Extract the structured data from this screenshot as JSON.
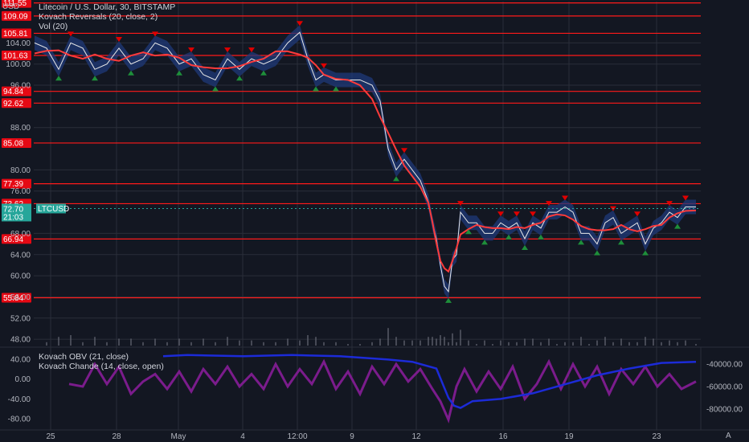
{
  "header": {
    "currency": "USD"
  },
  "legends": {
    "main": [
      "Litecoin / U.S. Dollar, 30, BITSTAMP",
      "Kovach Reversals (20, close, 2)",
      "Vol (20)"
    ],
    "sub": [
      "Kovach OBV (21, close)",
      "Kovach Chande (14, close, open)"
    ]
  },
  "footer": {
    "auto_label": "A"
  },
  "colors": {
    "background": "#131722",
    "grid": "#2a2e39",
    "level_line": "#ff1a1a",
    "price_line": "#e8e8e8",
    "band": "#1f3a7a",
    "ma": "#ff3b3b",
    "up_arrow": "#1e8f3a",
    "down_arrow": "#e00000",
    "volume": "#5d606b",
    "obv": "#1c2bd8",
    "chande": "#7b1c8c",
    "current": "#26a69a"
  },
  "chart_data": [
    {
      "type": "line",
      "title": "Litecoin / U.S. Dollar, 30, BITSTAMP",
      "y_axis_ticks": [
        "104.00",
        "100.00",
        "96.00",
        "88.00",
        "80.00",
        "76.00",
        "68.00",
        "64.00",
        "60.00",
        "56.00",
        "52.00",
        "48.00"
      ],
      "y_range": [
        46.5,
        111.8
      ],
      "x_axis_ticks": [
        "25",
        "28",
        "May",
        "4",
        "12:00",
        "9",
        "12",
        "16",
        "19",
        "23"
      ],
      "levels": [
        "111.55",
        "109.09",
        "105.81",
        "101.63",
        "94.84",
        "92.62",
        "85.08",
        "77.39",
        "73.62",
        "66.94",
        "55.84"
      ],
      "current_price": "72.70",
      "current_countdown": "21:03",
      "current_symbol": "LTCUSD",
      "series": [
        {
          "x": [
            0,
            15,
            30,
            45,
            60,
            75,
            90,
            105,
            120,
            135,
            150,
            165,
            180,
            195,
            210,
            225,
            240,
            255,
            270,
            285,
            300,
            315,
            330,
            340,
            350,
            360,
            375,
            390,
            405,
            420,
            430,
            440,
            450,
            460,
            470,
            480,
            490,
            495,
            500,
            505,
            510,
            515,
            520,
            525,
            530,
            540,
            550,
            560,
            570,
            580,
            590,
            600,
            610,
            620,
            630,
            640,
            650,
            660,
            670,
            680,
            690,
            700,
            710,
            720,
            730,
            740,
            750,
            760,
            770,
            780,
            790,
            800,
            810,
            823
          ],
          "values": [
            104,
            103,
            99,
            104,
            103,
            99,
            100,
            103,
            100,
            101,
            104,
            103,
            100,
            101,
            98,
            97,
            101,
            99,
            101,
            100,
            101,
            104,
            106,
            101,
            97,
            98,
            97,
            97,
            97,
            96,
            93,
            84,
            80,
            82,
            80,
            78,
            74,
            70,
            67,
            62,
            58,
            57,
            63,
            64,
            72,
            70,
            70,
            68,
            68,
            70,
            69,
            70,
            67,
            70,
            69,
            72,
            72,
            73,
            72,
            68,
            68,
            66,
            70,
            71,
            68,
            69,
            70,
            66,
            69,
            70,
            72,
            71,
            73,
            73
          ]
        }
      ]
    },
    {
      "type": "line",
      "title": "Kovach OBV (21, close) / Kovach Chande (14, close, open)",
      "y_left_ticks": [
        "40.00",
        "0.00",
        "-40.00",
        "-80.00"
      ],
      "y_right_ticks": [
        "-40000.00",
        "-60000.00",
        "-80000.00"
      ],
      "series": [
        {
          "name": "Kovach OBV (21, close)",
          "x": [
            160,
            190,
            260,
            320,
            380,
            440,
            470,
            500,
            515,
            522,
            530,
            545,
            580,
            620,
            660,
            700,
            740,
            780,
            823
          ],
          "values": [
            -33000,
            -32000,
            -33000,
            -32000,
            -33000,
            -36000,
            -38000,
            -44000,
            -70000,
            -77000,
            -79000,
            -73000,
            -71000,
            -66000,
            -58000,
            -50000,
            -44000,
            -39000,
            -38000
          ]
        },
        {
          "name": "Kovach Chande (14, close, open)",
          "x": [
            43,
            60,
            75,
            90,
            105,
            120,
            135,
            150,
            165,
            180,
            195,
            210,
            225,
            240,
            255,
            270,
            285,
            300,
            315,
            330,
            345,
            360,
            375,
            390,
            405,
            420,
            435,
            450,
            465,
            480,
            495,
            505,
            515,
            525,
            535,
            550,
            565,
            580,
            595,
            610,
            625,
            640,
            655,
            670,
            685,
            700,
            715,
            730,
            745,
            760,
            775,
            790,
            805,
            823
          ],
          "values": [
            -10,
            -15,
            30,
            -10,
            25,
            -30,
            -5,
            10,
            -20,
            15,
            -25,
            20,
            -10,
            25,
            -15,
            10,
            -20,
            30,
            -15,
            20,
            -10,
            35,
            -20,
            15,
            -30,
            25,
            -10,
            30,
            -5,
            20,
            -20,
            -45,
            -82,
            -15,
            20,
            -25,
            15,
            -20,
            25,
            -40,
            -10,
            35,
            -20,
            30,
            -15,
            25,
            -30,
            20,
            -10,
            25,
            -15,
            10,
            -20,
            -5
          ]
        }
      ]
    }
  ]
}
